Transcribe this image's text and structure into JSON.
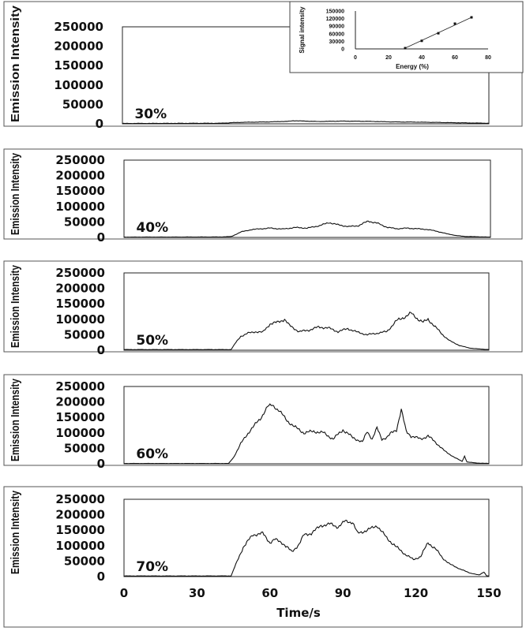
{
  "chart_data": [
    {
      "type": "line",
      "label": "30%",
      "ylabel": "Emission Intensity",
      "xlabel": "",
      "ylim": [
        0,
        250000
      ],
      "xlim": [
        0,
        150
      ],
      "yticks": [
        "250000",
        "200000",
        "150000",
        "100000",
        "50000",
        "0"
      ],
      "x": [
        0,
        40,
        45,
        50,
        60,
        68,
        70,
        80,
        90,
        100,
        110,
        120,
        130,
        140,
        150
      ],
      "values": [
        1000,
        1500,
        3000,
        4000,
        5000,
        6500,
        8000,
        6000,
        7000,
        6500,
        5000,
        4500,
        3500,
        2500,
        1500
      ]
    },
    {
      "type": "line",
      "label": "40%",
      "ylabel": "Emission Intensity",
      "xlabel": "",
      "ylim": [
        0,
        250000
      ],
      "xlim": [
        0,
        150
      ],
      "yticks": [
        "250000",
        "200000",
        "150000",
        "100000",
        "50000",
        "0"
      ],
      "x": [
        0,
        40,
        44,
        48,
        52,
        56,
        60,
        65,
        70,
        75,
        80,
        84,
        88,
        92,
        96,
        100,
        104,
        108,
        112,
        116,
        120,
        124,
        128,
        132,
        136,
        140,
        145,
        150
      ],
      "values": [
        1000,
        1500,
        3000,
        18000,
        25000,
        28000,
        30000,
        27000,
        32000,
        30000,
        38000,
        48000,
        40000,
        35000,
        38000,
        53000,
        45000,
        32000,
        28000,
        30000,
        28000,
        26000,
        20000,
        12000,
        6000,
        3000,
        2000,
        1000
      ]
    },
    {
      "type": "line",
      "label": "50%",
      "ylabel": "Emission Intensity",
      "xlabel": "",
      "ylim": [
        0,
        250000
      ],
      "xlim": [
        0,
        150
      ],
      "yticks": [
        "250000",
        "200000",
        "150000",
        "100000",
        "50000",
        "0"
      ],
      "x": [
        0,
        44,
        46,
        48,
        51,
        54,
        57,
        60,
        63,
        66,
        68,
        72,
        76,
        80,
        84,
        88,
        92,
        96,
        100,
        104,
        108,
        112,
        116,
        118,
        121,
        123,
        125,
        128,
        131,
        134,
        138,
        142,
        146,
        150
      ],
      "values": [
        2000,
        2000,
        25000,
        45000,
        55000,
        60000,
        58000,
        85000,
        90000,
        100000,
        80000,
        60000,
        65000,
        75000,
        72000,
        60000,
        70000,
        58000,
        50000,
        55000,
        60000,
        95000,
        110000,
        120000,
        100000,
        90000,
        100000,
        75000,
        50000,
        30000,
        15000,
        7000,
        4000,
        2000
      ]
    },
    {
      "type": "line",
      "label": "60%",
      "ylabel": "Emission Intensity",
      "xlabel": "",
      "ylim": [
        0,
        250000
      ],
      "xlim": [
        0,
        150
      ],
      "yticks": [
        "250000",
        "200000",
        "150000",
        "100000",
        "50000",
        "0"
      ],
      "x": [
        0,
        43,
        45,
        48,
        52,
        56,
        59,
        61,
        64,
        67,
        70,
        74,
        78,
        82,
        86,
        90,
        94,
        98,
        100,
        102,
        104,
        106,
        108,
        110,
        112,
        114,
        116,
        118,
        122,
        125,
        128,
        132,
        136,
        139,
        140,
        141,
        143,
        146,
        150
      ],
      "values": [
        1000,
        1000,
        20000,
        65000,
        110000,
        145000,
        185000,
        190000,
        170000,
        140000,
        120000,
        100000,
        105000,
        100000,
        80000,
        110000,
        85000,
        70000,
        105000,
        80000,
        115000,
        80000,
        85000,
        100000,
        110000,
        175000,
        105000,
        90000,
        80000,
        90000,
        70000,
        40000,
        20000,
        8000,
        25000,
        6000,
        4000,
        2000,
        1000
      ]
    },
    {
      "type": "line",
      "label": "70%",
      "ylabel": "Emission Intensity",
      "xlabel": "Time/s",
      "ylim": [
        0,
        250000
      ],
      "xlim": [
        0,
        150
      ],
      "xticks": [
        "0",
        "30",
        "60",
        "90",
        "120",
        "150"
      ],
      "yticks": [
        "250000",
        "200000",
        "150000",
        "100000",
        "50000",
        "0"
      ],
      "x": [
        0,
        44,
        46,
        49,
        53,
        57,
        60,
        62,
        65,
        69,
        72,
        74,
        77,
        81,
        85,
        88,
        91,
        94,
        96,
        100,
        104,
        108,
        112,
        116,
        119,
        122,
        125,
        128,
        131,
        134,
        138,
        142,
        146,
        148,
        149,
        150
      ],
      "values": [
        2000,
        2000,
        40000,
        95000,
        135000,
        140000,
        110000,
        120000,
        110000,
        80000,
        105000,
        135000,
        140000,
        165000,
        170000,
        160000,
        180000,
        175000,
        140000,
        150000,
        165000,
        125000,
        95000,
        70000,
        55000,
        65000,
        110000,
        90000,
        60000,
        40000,
        25000,
        12000,
        5000,
        15000,
        3000,
        2000
      ]
    },
    {
      "type": "scatter",
      "inset": true,
      "xlabel": "Energy (%)",
      "ylabel": "Signal intensity",
      "xlim": [
        0,
        80
      ],
      "ylim": [
        0,
        150000
      ],
      "xticks": [
        "0",
        "20",
        "40",
        "60",
        "80"
      ],
      "yticks": [
        "150000",
        "120000",
        "90000",
        "60000",
        "30000",
        "0"
      ],
      "x": [
        30,
        40,
        50,
        60,
        70
      ],
      "values": [
        3000,
        32000,
        62000,
        100000,
        125000
      ],
      "fit_line": true
    }
  ]
}
